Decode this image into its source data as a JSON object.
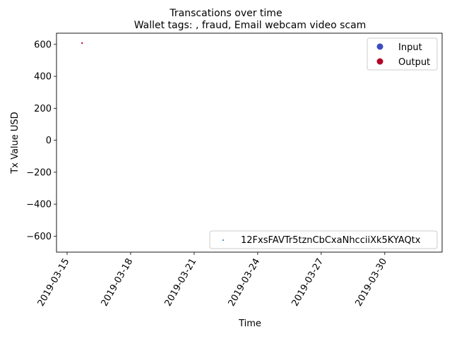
{
  "figure": {
    "suptitle": "Transcations over time"
  },
  "chart_data": {
    "type": "scatter",
    "title": "Wallet tags: , fraud, Email webcam video scam",
    "xlabel": "Time",
    "ylabel": "Tx Value USD",
    "x_axis": {
      "kind": "date",
      "range": [
        "2019-03-14T12:00",
        "2019-04-01T17:00"
      ],
      "tick_labels": [
        "2019-03-15",
        "2019-03-18",
        "2019-03-21",
        "2019-03-24",
        "2019-03-27",
        "2019-03-30"
      ],
      "tick_rotation_deg": 60
    },
    "y_axis": {
      "range": [
        -700,
        670
      ],
      "ticks": [
        600,
        400,
        200,
        0,
        -200,
        -400,
        -600
      ],
      "tick_labels": [
        "600",
        "400",
        "200",
        "0",
        "−200",
        "−400",
        "−600"
      ]
    },
    "grid": false,
    "series": [
      {
        "name": "Output",
        "color": "#b40426",
        "points": [
          {
            "x": "2019-03-15T17:00",
            "y": 608
          }
        ]
      }
    ],
    "legends": [
      {
        "location": "upper right",
        "entries": [
          {
            "label": "Input",
            "marker": "circle",
            "color": "#3b4cc0"
          },
          {
            "label": "Output",
            "marker": "circle",
            "color": "#b40426"
          }
        ]
      },
      {
        "location": "lower right",
        "entries": [
          {
            "label": "12FxsFAVTr5tznCbCxaNhcciiXk5KYAQtx",
            "marker": "dot",
            "color": "#1f77b4"
          }
        ]
      }
    ]
  }
}
